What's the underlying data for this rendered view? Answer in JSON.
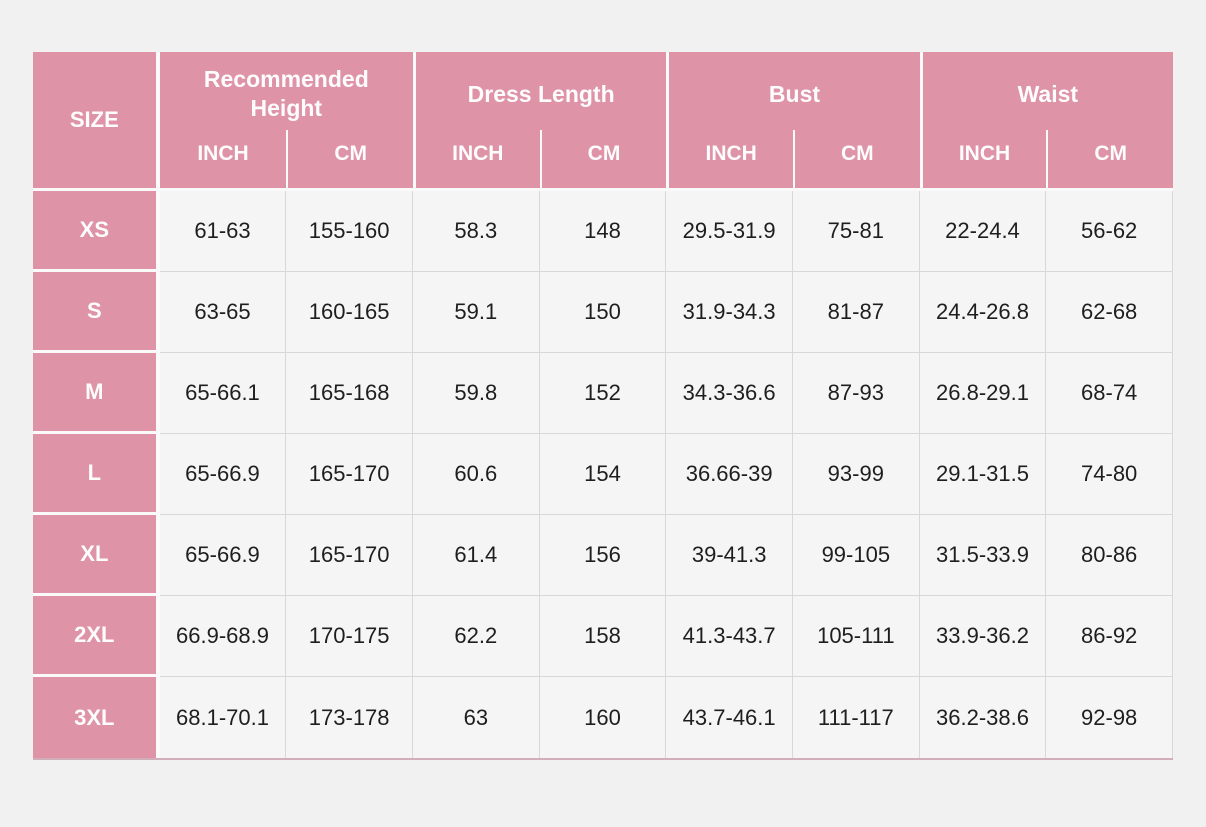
{
  "chart_data": {
    "type": "table",
    "size_column_header": "SIZE",
    "groups": [
      {
        "label": "Recommended Height",
        "units": [
          "INCH",
          "CM"
        ]
      },
      {
        "label": "Dress Length",
        "units": [
          "INCH",
          "CM"
        ]
      },
      {
        "label": "Bust",
        "units": [
          "INCH",
          "CM"
        ]
      },
      {
        "label": "Waist",
        "units": [
          "INCH",
          "CM"
        ]
      }
    ],
    "rows": [
      {
        "size": "XS",
        "values": [
          "61-63",
          "155-160",
          "58.3",
          "148",
          "29.5-31.9",
          "75-81",
          "22-24.4",
          "56-62"
        ]
      },
      {
        "size": "S",
        "values": [
          "63-65",
          "160-165",
          "59.1",
          "150",
          "31.9-34.3",
          "81-87",
          "24.4-26.8",
          "62-68"
        ]
      },
      {
        "size": "M",
        "values": [
          "65-66.1",
          "165-168",
          "59.8",
          "152",
          "34.3-36.6",
          "87-93",
          "26.8-29.1",
          "68-74"
        ]
      },
      {
        "size": "L",
        "values": [
          "65-66.9",
          "165-170",
          "60.6",
          "154",
          "36.66-39",
          "93-99",
          "29.1-31.5",
          "74-80"
        ]
      },
      {
        "size": "XL",
        "values": [
          "65-66.9",
          "165-170",
          "61.4",
          "156",
          "39-41.3",
          "99-105",
          "31.5-33.9",
          "80-86"
        ]
      },
      {
        "size": "2XL",
        "values": [
          "66.9-68.9",
          "170-175",
          "62.2",
          "158",
          "41.3-43.7",
          "105-111",
          "33.9-36.2",
          "86-92"
        ]
      },
      {
        "size": "3XL",
        "values": [
          "68.1-70.1",
          "173-178",
          "63",
          "160",
          "43.7-46.1",
          "111-117",
          "36.2-38.6",
          "92-98"
        ]
      }
    ]
  },
  "colors": {
    "pink": "#df93a7",
    "header_text": "#fdfdfd",
    "page_bg": "#f1f1f2",
    "cell_bg": "#f5f5f6",
    "cell_border": "#d8d8da",
    "body_text": "#1e1e1e",
    "gap": "#fafafb",
    "bottom_line": "#d2aeba"
  }
}
